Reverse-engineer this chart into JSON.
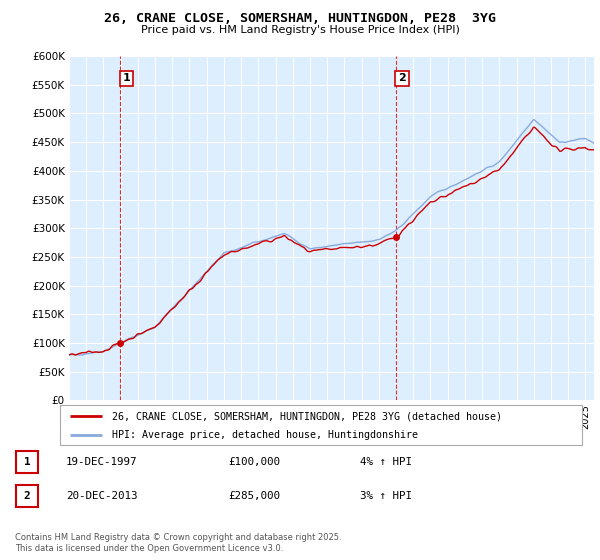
{
  "title": "26, CRANE CLOSE, SOMERSHAM, HUNTINGDON, PE28  3YG",
  "subtitle": "Price paid vs. HM Land Registry's House Price Index (HPI)",
  "ylim": [
    0,
    600000
  ],
  "xlim_start": 1995.0,
  "xlim_end": 2025.5,
  "yticks": [
    0,
    50000,
    100000,
    150000,
    200000,
    250000,
    300000,
    350000,
    400000,
    450000,
    500000,
    550000,
    600000
  ],
  "ytick_labels": [
    "£0",
    "£50K",
    "£100K",
    "£150K",
    "£200K",
    "£250K",
    "£300K",
    "£350K",
    "£400K",
    "£450K",
    "£500K",
    "£550K",
    "£600K"
  ],
  "sale1_year": 1997.97,
  "sale1_price": 100000,
  "sale1_label": "1",
  "sale2_year": 2013.97,
  "sale2_price": 285000,
  "sale2_label": "2",
  "line_color_price": "#cc0000",
  "line_color_hpi": "#88aadd",
  "chart_bg": "#ddeeff",
  "legend_label_price": "26, CRANE CLOSE, SOMERSHAM, HUNTINGDON, PE28 3YG (detached house)",
  "legend_label_hpi": "HPI: Average price, detached house, Huntingdonshire",
  "table_row1": [
    "1",
    "19-DEC-1997",
    "£100,000",
    "4% ↑ HPI"
  ],
  "table_row2": [
    "2",
    "20-DEC-2013",
    "£285,000",
    "3% ↑ HPI"
  ],
  "footnote": "Contains HM Land Registry data © Crown copyright and database right 2025.\nThis data is licensed under the Open Government Licence v3.0.",
  "background_color": "#ffffff",
  "grid_color": "#ffffff"
}
